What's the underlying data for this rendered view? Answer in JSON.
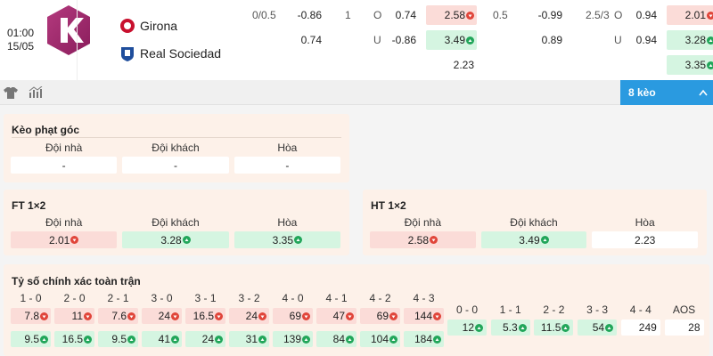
{
  "match": {
    "time": "01:00",
    "date": "15/05",
    "home": "Girona",
    "away": "Real Sociedad"
  },
  "odds_groups": [
    {
      "handicap": [
        {
          "line": "0/0.5",
          "price": "-0.86"
        },
        {
          "price": "0.74"
        }
      ],
      "over_under": [
        {
          "line": "1",
          "side": "O",
          "price": "0.74"
        },
        {
          "side": "U",
          "price": "-0.86"
        }
      ],
      "x12": [
        {
          "text": "2.58",
          "trend": "down"
        },
        {
          "text": "3.49",
          "trend": "up"
        },
        {
          "text": "2.23"
        }
      ]
    },
    {
      "handicap": [
        {
          "line": "0.5",
          "price": "-0.99"
        },
        {
          "price": "0.89"
        }
      ],
      "over_under": [
        {
          "line": "2.5/3",
          "side": "O",
          "price": "0.94"
        },
        {
          "side": "U",
          "price": "0.94"
        }
      ],
      "x12": [
        {
          "text": "2.01",
          "trend": "down"
        },
        {
          "text": "3.28",
          "trend": "up"
        },
        {
          "text": "3.35",
          "trend": "up"
        }
      ]
    }
  ],
  "bets_button": "8 kèo",
  "markets": [
    {
      "title": "Kèo phạt góc",
      "headers": [
        "Đội nhà",
        "Đội khách",
        "Hòa"
      ],
      "cells": [
        {
          "text": "-"
        },
        {
          "text": "-"
        },
        {
          "text": "-"
        }
      ]
    },
    {
      "title": "FT 1×2",
      "headers": [
        "Đội nhà",
        "Đội khách",
        "Hòa"
      ],
      "cells": [
        {
          "text": "2.01",
          "trend": "down"
        },
        {
          "text": "3.28",
          "trend": "up"
        },
        {
          "text": "3.35",
          "trend": "up"
        }
      ]
    },
    {
      "title": "HT 1×2",
      "headers": [
        "Đội nhà",
        "Đội khách",
        "Hòa"
      ],
      "cells": [
        {
          "text": "2.58",
          "trend": "down"
        },
        {
          "text": "3.49",
          "trend": "up"
        },
        {
          "text": "2.23"
        }
      ]
    }
  ],
  "correct_score": {
    "title": "Tỷ số chính xác toàn trận",
    "scores": [
      {
        "label": "1 - 0",
        "home": {
          "text": "7.8",
          "trend": "down"
        },
        "away": {
          "text": "9.5",
          "trend": "up"
        }
      },
      {
        "label": "2 - 0",
        "home": {
          "text": "11",
          "trend": "down"
        },
        "away": {
          "text": "16.5",
          "trend": "up"
        }
      },
      {
        "label": "2 - 1",
        "home": {
          "text": "7.6",
          "trend": "down"
        },
        "away": {
          "text": "9.5",
          "trend": "up"
        }
      },
      {
        "label": "3 - 0",
        "home": {
          "text": "24",
          "trend": "down"
        },
        "away": {
          "text": "41",
          "trend": "up"
        }
      },
      {
        "label": "3 - 1",
        "home": {
          "text": "16.5",
          "trend": "down"
        },
        "away": {
          "text": "24",
          "trend": "up"
        }
      },
      {
        "label": "3 - 2",
        "home": {
          "text": "24",
          "trend": "down"
        },
        "away": {
          "text": "31",
          "trend": "up"
        }
      },
      {
        "label": "4 - 0",
        "home": {
          "text": "69",
          "trend": "down"
        },
        "away": {
          "text": "139",
          "trend": "up"
        }
      },
      {
        "label": "4 - 1",
        "home": {
          "text": "47",
          "trend": "down"
        },
        "away": {
          "text": "84",
          "trend": "up"
        }
      },
      {
        "label": "4 - 2",
        "home": {
          "text": "69",
          "trend": "down"
        },
        "away": {
          "text": "104",
          "trend": "up"
        }
      },
      {
        "label": "4 - 3",
        "home": {
          "text": "144",
          "trend": "down"
        },
        "away": {
          "text": "184",
          "trend": "up"
        }
      }
    ],
    "draws": [
      {
        "label": "0 - 0",
        "odd": {
          "text": "12",
          "trend": "up"
        }
      },
      {
        "label": "1 - 1",
        "odd": {
          "text": "5.3",
          "trend": "up"
        }
      },
      {
        "label": "2 - 2",
        "odd": {
          "text": "11.5",
          "trend": "up"
        }
      },
      {
        "label": "3 - 3",
        "odd": {
          "text": "54",
          "trend": "up"
        }
      },
      {
        "label": "4 - 4",
        "odd": {
          "text": "249"
        }
      },
      {
        "label": "AOS",
        "odd": {
          "text": "28"
        }
      }
    ]
  }
}
